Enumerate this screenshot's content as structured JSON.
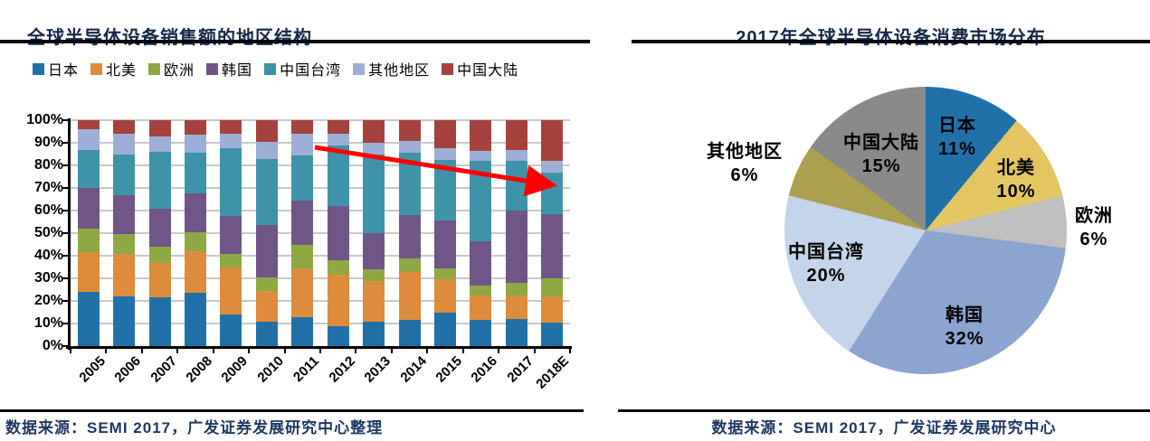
{
  "left_panel": {
    "title": "全球半导体设备销售额的地区结构",
    "source": "数据来源：SEMI 2017，广发证券发展研究中心整理"
  },
  "right_panel": {
    "title": "2017年全球半导体设备消费市场分布",
    "source": "数据来源：SEMI 2017，广发证券发展研究中心"
  },
  "chart_data": [
    {
      "type": "bar",
      "variant": "stacked-100pct-column",
      "title": "全球半导体设备销售额的地区结构",
      "categories": [
        "2005",
        "2006",
        "2007",
        "2008",
        "2009",
        "2010",
        "2011",
        "2012",
        "2013",
        "2014",
        "2015",
        "2016",
        "2017",
        "2018E"
      ],
      "series": [
        {
          "name": "日本",
          "color": "#2171A8",
          "values": [
            24,
            22,
            21.5,
            23.5,
            14,
            11,
            13,
            9,
            11,
            11.5,
            15,
            11.5,
            12,
            10.5
          ]
        },
        {
          "name": "北美",
          "color": "#DD8C3C",
          "values": [
            17.5,
            19,
            15.5,
            18.5,
            21,
            13.5,
            21.5,
            22.5,
            18,
            21.5,
            14.5,
            11,
            10.5,
            11.5
          ]
        },
        {
          "name": "欧洲",
          "color": "#8FA844",
          "values": [
            10.5,
            8.5,
            7,
            8.5,
            6,
            6,
            10.5,
            6.5,
            5,
            6,
            5,
            4.5,
            5.5,
            8
          ]
        },
        {
          "name": "韩国",
          "color": "#6F5687",
          "values": [
            18,
            17.5,
            17,
            17,
            16.5,
            23,
            19.5,
            24,
            16,
            19,
            21,
            19.5,
            32,
            28.5
          ]
        },
        {
          "name": "中国台湾",
          "color": "#3E93A9",
          "values": [
            17,
            18,
            25,
            18,
            30,
            29.5,
            20,
            27,
            35,
            27.5,
            27,
            35.5,
            22,
            18.5
          ]
        },
        {
          "name": "其他地区",
          "color": "#9DAFD6",
          "values": [
            9,
            9,
            7,
            8,
            6.5,
            7.5,
            9.5,
            5,
            5,
            5.5,
            5,
            4.5,
            5,
            5
          ]
        },
        {
          "name": "中国大陆",
          "color": "#A6423D",
          "values": [
            4,
            6,
            7,
            6.5,
            6,
            9.5,
            6,
            6,
            10,
            9,
            12.5,
            13.5,
            13,
            18
          ]
        }
      ],
      "yticks": [
        "0%",
        "10%",
        "20%",
        "30%",
        "40%",
        "50%",
        "60%",
        "70%",
        "80%",
        "90%",
        "100%"
      ],
      "ylim": [
        0,
        100
      ],
      "grid": true,
      "legend_position": "top",
      "annotation": {
        "type": "trend-arrow",
        "color": "#FF0000",
        "meaning": "share decline from ~87% (2011) to ~77% (2018E)"
      }
    },
    {
      "type": "pie",
      "title": "2017年全球半导体设备消费市场分布",
      "start_angle_deg": 0,
      "clockwise": true,
      "slices": [
        {
          "label": "日本",
          "pct": 11,
          "pct_text": "11%",
          "color": "#2171A8",
          "label_inside": true
        },
        {
          "label": "北美",
          "pct": 10,
          "pct_text": "10%",
          "color": "#E3C661",
          "label_inside": true
        },
        {
          "label": "欧洲",
          "pct": 6,
          "pct_text": "6%",
          "color": "#BFBFBF",
          "label_inside": false
        },
        {
          "label": "韩国",
          "pct": 32,
          "pct_text": "32%",
          "color": "#8BA4D0",
          "label_inside": true
        },
        {
          "label": "中国台湾",
          "pct": 20,
          "pct_text": "20%",
          "color": "#C4D4EA",
          "label_inside": true
        },
        {
          "label": "其他地区",
          "pct": 6,
          "pct_text": "6%",
          "color": "#ABA04F",
          "label_inside": false
        },
        {
          "label": "中国大陆",
          "pct": 15,
          "pct_text": "15%",
          "color": "#8A8A8A",
          "label_inside": true
        }
      ]
    }
  ]
}
